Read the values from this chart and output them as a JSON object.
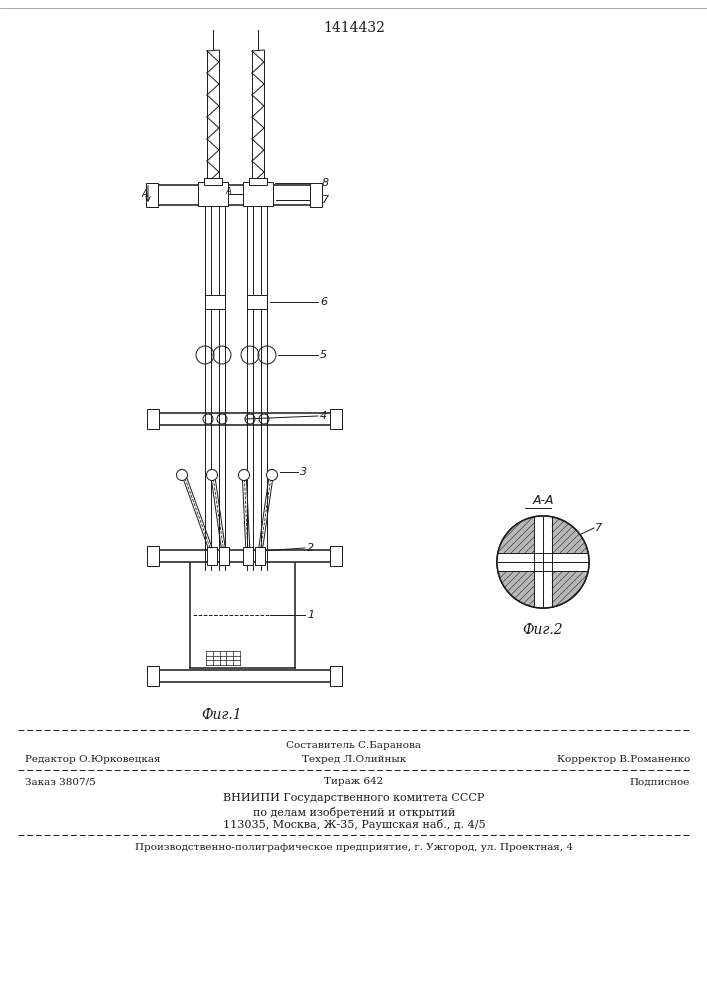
{
  "title": "1414432",
  "fig1_label": "Фиг.1",
  "fig2_label": "Фиг.2",
  "fig2_title": "A-A",
  "label_7": "7",
  "label_8": "8",
  "label_6": "6",
  "label_5": "5",
  "label_4": "4",
  "label_3": "3",
  "label_2": "2",
  "label_1": "1",
  "footer_sostavitel": "Составитель С.Баранова",
  "footer_editor": "Редактор О.Юрковецкая",
  "footer_techred": "Техред Л.Олийнык",
  "footer_corrector": "Корректор В.Романенко",
  "footer_order": "Заказ 3807/5",
  "footer_tirazh": "Тираж 642",
  "footer_podpisnoe": "Подписное",
  "footer_vniipи": "ВНИИПИ Государственного комитета СССР",
  "footer_po_delam": "по делам изобретений и открытий",
  "footer_address": "113035, Москва, Ж-35, Раушская наб., д. 4/5",
  "footer_proizv": "Производственно-полиграфическое предприятие, г. Ужгород, ул. Проектная, 4",
  "bg_color": "#ffffff",
  "line_color": "#1a1a1a"
}
